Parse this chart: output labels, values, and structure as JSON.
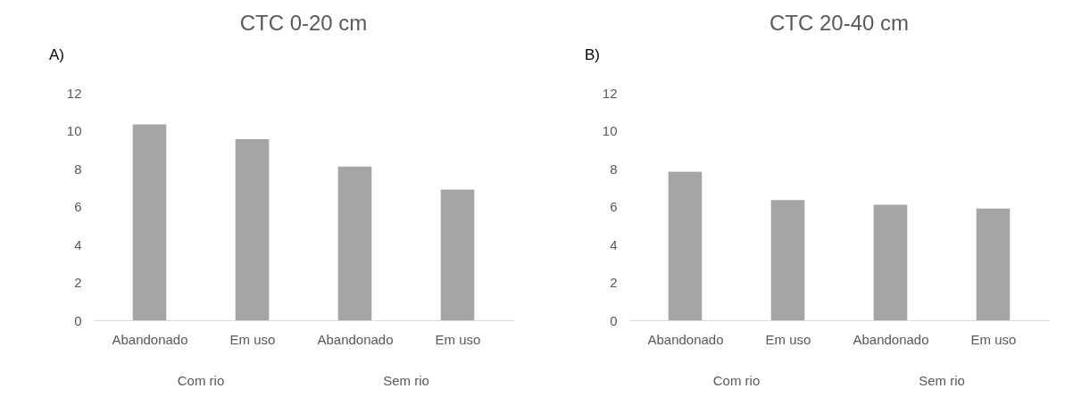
{
  "chart_data": [
    {
      "type": "bar",
      "title": "CTC 0-20 cm",
      "categories": [
        "Abandonado",
        "Em uso",
        "Abandonado",
        "Em uso"
      ],
      "values": [
        10.33,
        9.55,
        8.11,
        6.89
      ],
      "color": "#a5a5a5",
      "ylim": [
        0,
        12
      ],
      "yticks": [
        0,
        2,
        4,
        6,
        8,
        10,
        12
      ],
      "grid": false,
      "annotations": [
        "A)",
        "Com rio",
        "Sem rio"
      ]
    },
    {
      "type": "bar",
      "title": "CTC 20-40 cm",
      "categories": [
        "Abandonado",
        "Em uso",
        "Abandonado",
        "Em uso"
      ],
      "values": [
        7.84,
        6.34,
        6.1,
        5.9
      ],
      "color": "#a5a5a5",
      "ylim": [
        0,
        12
      ],
      "yticks": [
        0,
        2,
        4,
        6,
        8,
        10,
        12
      ],
      "grid": false,
      "annotations": [
        "B)",
        "Com rio",
        "Sem rio"
      ]
    }
  ]
}
